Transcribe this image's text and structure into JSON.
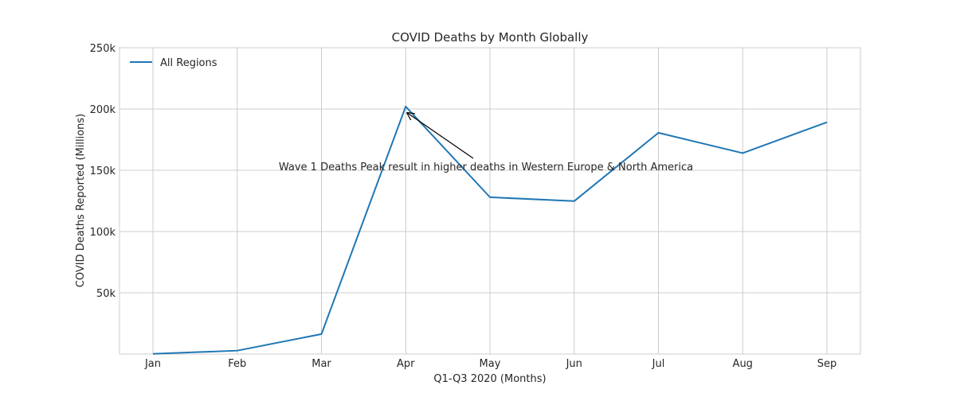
{
  "chart_data": {
    "type": "line",
    "title": "COVID Deaths by Month Globally",
    "xlabel": "Q1-Q3 2020 (Months)",
    "ylabel": "COVID Deaths Reported (Millions)",
    "categories": [
      "Jan",
      "Feb",
      "Mar",
      "Apr",
      "May",
      "Jun",
      "Jul",
      "Aug",
      "Sep"
    ],
    "series": [
      {
        "name": "All Regions",
        "color": "#1f77b4",
        "values": [
          200,
          2800,
          16300,
          202000,
          128000,
          124800,
          180600,
          164000,
          189200
        ]
      }
    ],
    "ylim": [
      0,
      250000
    ],
    "yticks": [
      {
        "value": 50000,
        "label": "50k"
      },
      {
        "value": 100000,
        "label": "100k"
      },
      {
        "value": 150000,
        "label": "150k"
      },
      {
        "value": 200000,
        "label": "200k"
      },
      {
        "value": 250000,
        "label": "250k"
      }
    ],
    "grid": true,
    "legend": {
      "position": "top-left"
    },
    "annotation": {
      "text": "Wave 1 Deaths Peak result in higher deaths in Western Europe & North America",
      "target_category": "Apr",
      "target_value": 202000
    }
  }
}
